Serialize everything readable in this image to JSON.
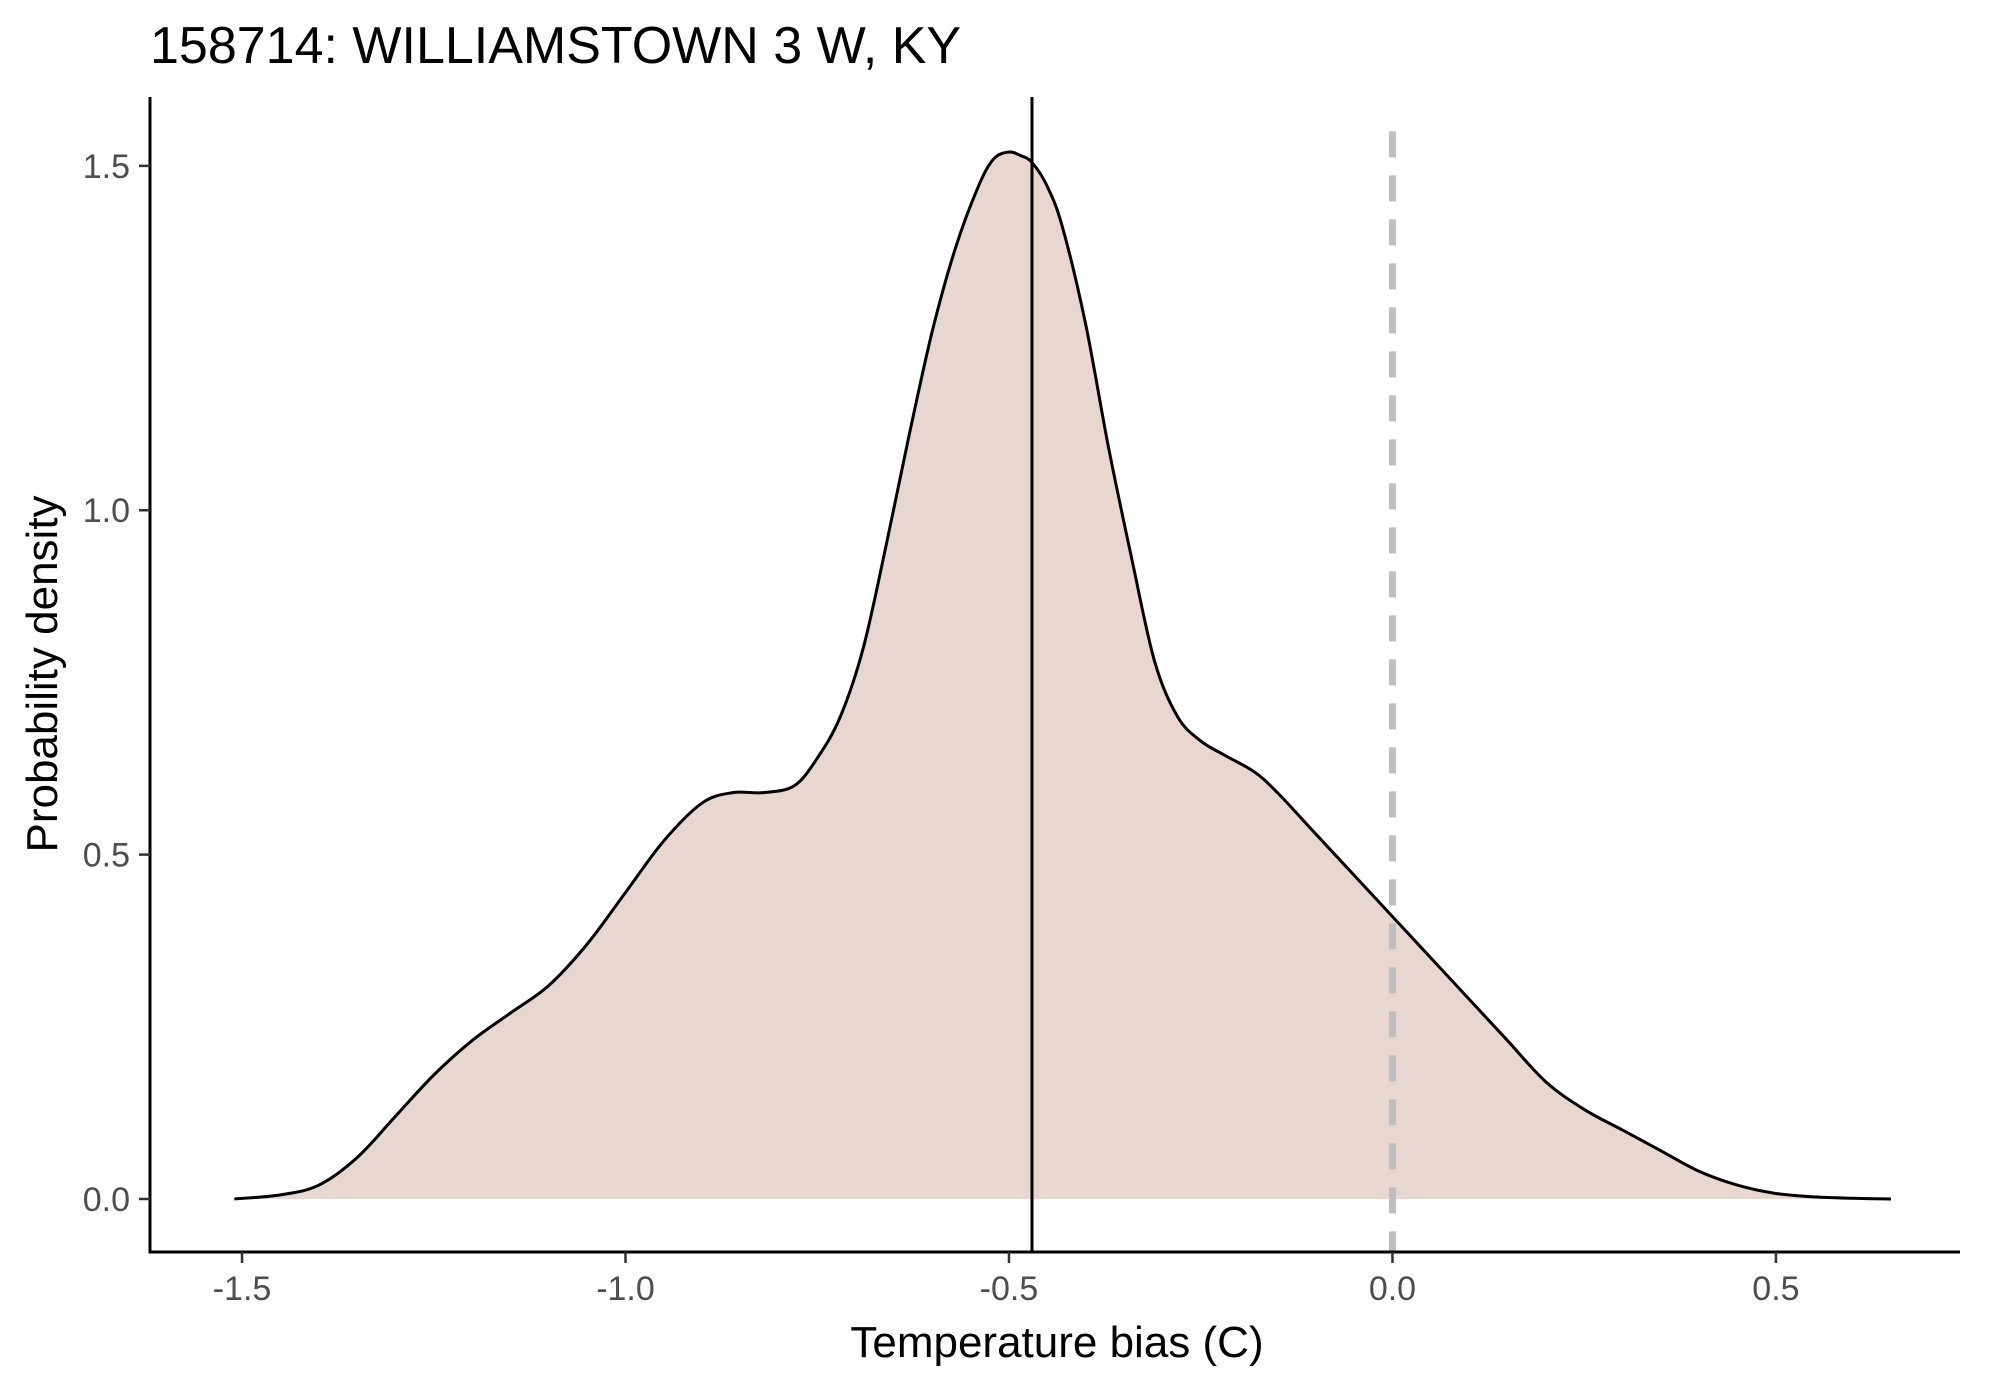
{
  "chart_data": {
    "type": "area",
    "title": "158714: WILLIAMSTOWN 3 W, KY",
    "xlabel": "Temperature bias (C)",
    "ylabel": "Probability density",
    "xlim": [
      -1.62,
      0.74
    ],
    "ylim": [
      -0.077,
      1.6
    ],
    "x_ticks": [
      -1.5,
      -1.0,
      -0.5,
      0.0,
      0.5
    ],
    "x_tick_labels": [
      "-1.5",
      "-1.0",
      "-0.5",
      "0.0",
      "0.5"
    ],
    "y_ticks": [
      0.0,
      0.5,
      1.0,
      1.5
    ],
    "y_tick_labels": [
      "0.0",
      "0.5",
      "1.0",
      "1.5"
    ],
    "grid": false,
    "fill_color": "#e8d6d0",
    "line_color": "#000000",
    "series": [
      {
        "x": [
          -1.51,
          -1.45,
          -1.4,
          -1.35,
          -1.3,
          -1.25,
          -1.2,
          -1.15,
          -1.1,
          -1.05,
          -1.0,
          -0.95,
          -0.9,
          -0.86,
          -0.82,
          -0.78,
          -0.75,
          -0.72,
          -0.69,
          -0.66,
          -0.63,
          -0.6,
          -0.57,
          -0.54,
          -0.52,
          -0.5,
          -0.485,
          -0.47,
          -0.45,
          -0.43,
          -0.4,
          -0.37,
          -0.34,
          -0.31,
          -0.28,
          -0.25,
          -0.22,
          -0.18,
          -0.15,
          -0.1,
          -0.05,
          0.0,
          0.05,
          0.1,
          0.15,
          0.2,
          0.25,
          0.3,
          0.35,
          0.4,
          0.45,
          0.5,
          0.55,
          0.6,
          0.65
        ],
        "y": [
          0.0,
          0.006,
          0.02,
          0.06,
          0.12,
          0.18,
          0.23,
          0.27,
          0.31,
          0.37,
          0.445,
          0.52,
          0.575,
          0.59,
          0.59,
          0.6,
          0.64,
          0.7,
          0.8,
          0.95,
          1.11,
          1.26,
          1.38,
          1.47,
          1.51,
          1.52,
          1.515,
          1.505,
          1.47,
          1.41,
          1.27,
          1.09,
          0.93,
          0.78,
          0.7,
          0.665,
          0.645,
          0.62,
          0.59,
          0.53,
          0.47,
          0.41,
          0.35,
          0.29,
          0.23,
          0.17,
          0.13,
          0.1,
          0.07,
          0.04,
          0.02,
          0.008,
          0.003,
          0.001,
          0.0
        ]
      }
    ],
    "vlines": [
      {
        "x": -0.47,
        "style": "solid",
        "color": "#000000"
      },
      {
        "x": 0.0,
        "style": "dashed",
        "color": "#bebebe"
      }
    ]
  }
}
